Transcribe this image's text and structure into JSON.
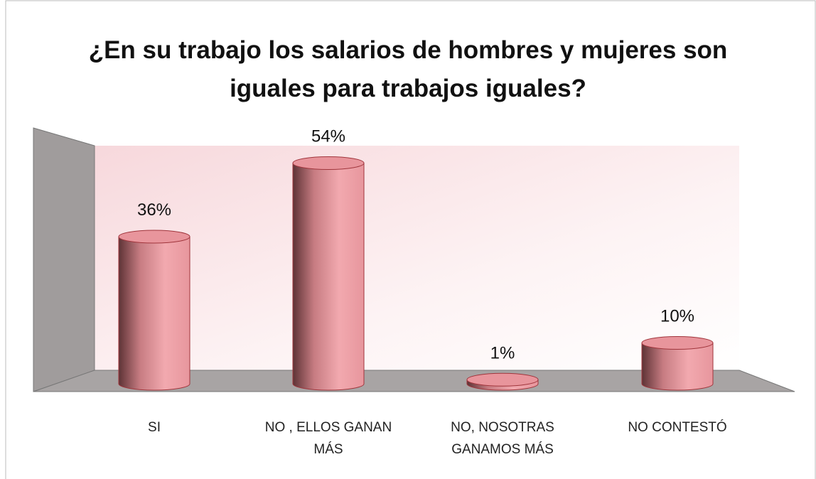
{
  "chart_data": {
    "type": "bar3d",
    "title": "¿En su trabajo los salarios de hombres y mujeres son iguales para trabajos iguales?",
    "categories": [
      "SI",
      "NO , ELLOS GANAN MÁS",
      "NO, NOSOTRAS GANAMOS MÁS",
      "NO CONTESTÓ"
    ],
    "values": [
      36,
      54,
      1,
      10
    ],
    "value_labels": [
      "36%",
      "54%",
      "1%",
      "10%"
    ],
    "color": "#e8959c"
  }
}
